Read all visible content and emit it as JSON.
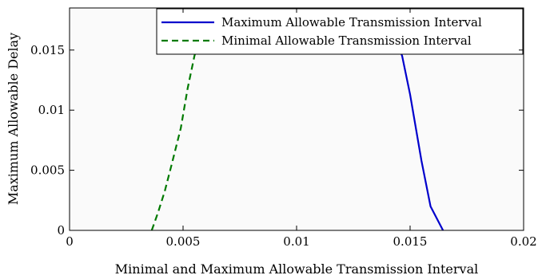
{
  "chart_data": {
    "type": "line",
    "title": "",
    "xlabel": "Minimal and Maximum Allowable Transmission Interval",
    "ylabel": "Maximum Allowable Delay",
    "xlim": [
      0,
      0.02
    ],
    "ylim": [
      0,
      0.0185
    ],
    "xticks": [
      0,
      0.005,
      0.01,
      0.015,
      0.02
    ],
    "xtick_labels": [
      "0",
      "0.005",
      "0.01",
      "0.015",
      "0.02"
    ],
    "yticks": [
      0,
      0.005,
      0.01,
      0.015
    ],
    "ytick_labels": [
      "0",
      "0.005",
      "0.01",
      "0.015"
    ],
    "grid": false,
    "legend_position": "top-right",
    "series": [
      {
        "name": "Maximum Allowable Transmission Interval",
        "color": "#0000cc",
        "style": "solid",
        "points": [
          [
            0.01645,
            0
          ],
          [
            0.0159,
            0.002
          ],
          [
            0.0155,
            0.0058
          ],
          [
            0.015,
            0.0113
          ],
          [
            0.01465,
            0.0145
          ],
          [
            0.0144,
            0.0158
          ]
        ]
      },
      {
        "name": "Minimal Allowable Transmission Interval",
        "color": "#007a00",
        "style": "dashed",
        "points": [
          [
            0.00362,
            0
          ],
          [
            0.0039,
            0.0015
          ],
          [
            0.0042,
            0.0033
          ],
          [
            0.0045,
            0.0055
          ],
          [
            0.0049,
            0.0085
          ],
          [
            0.0052,
            0.0118
          ],
          [
            0.0055,
            0.0145
          ],
          [
            0.0058,
            0.0165
          ]
        ]
      }
    ]
  }
}
